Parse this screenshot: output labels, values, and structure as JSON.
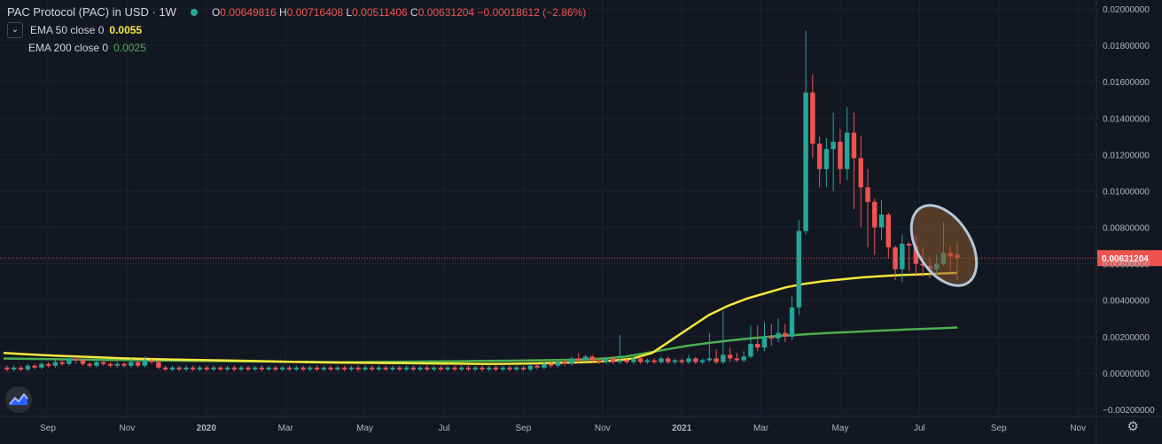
{
  "legend": {
    "title": "PAC Protocol (PAC) in USD · 1W",
    "open_label": "O",
    "open": "0.00649816",
    "high_label": "H",
    "high": "0.00716408",
    "low_label": "L",
    "low": "0.00511406",
    "close_label": "C",
    "close": "0.00631204",
    "change": "−0.00018612 (−2.86%)",
    "ema50_label": "EMA 50 close 0",
    "ema50_value": "0.0055",
    "ema200_label": "EMA 200 close 0",
    "ema200_value": "0.0025"
  },
  "colors": {
    "background": "#131722",
    "up": "#26a69a",
    "down": "#ef5350",
    "ema50": "#f7e83c",
    "ema200": "#4caf50",
    "grid": "#1e222d",
    "price_line": "#ef5350",
    "highlight_fill": "#8a5a2b",
    "highlight_stroke": "#b2c8dc"
  },
  "icons": {
    "logo": "tradingview-logo-icon",
    "settings": "gear-icon",
    "collapse": "chevron-down-icon"
  },
  "chart_data": {
    "type": "candlestick",
    "x_axis_ticks": [
      "Sep",
      "Nov",
      "2020",
      "Mar",
      "May",
      "Jul",
      "Sep",
      "Nov",
      "2021",
      "Mar",
      "May",
      "Jul",
      "Sep",
      "Nov"
    ],
    "y_axis_ticks": [
      "0.02000000",
      "0.01800000",
      "0.01600000",
      "0.01400000",
      "0.01200000",
      "0.01000000",
      "0.00800000",
      "0.00600000",
      "0.00400000",
      "0.00200000",
      "0.00000000",
      "−0.00200000"
    ],
    "ylim": [
      -0.002,
      0.02
    ],
    "grid": true,
    "last_price_label": "0.00631204",
    "last_price": 0.00631204,
    "candles": [
      {
        "o": 0.0003,
        "c": 0.0002,
        "h": 0.0004,
        "l": 0.0001
      },
      {
        "o": 0.0002,
        "c": 0.0003,
        "h": 0.0004,
        "l": 0.0001
      },
      {
        "o": 0.0003,
        "c": 0.0002,
        "h": 0.0004,
        "l": 0.0001
      },
      {
        "o": 0.0002,
        "c": 0.0004,
        "h": 0.0005,
        "l": 0.0001
      },
      {
        "o": 0.0004,
        "c": 0.0003,
        "h": 0.0005,
        "l": 0.0002
      },
      {
        "o": 0.0003,
        "c": 0.0005,
        "h": 0.0006,
        "l": 0.0002
      },
      {
        "o": 0.0005,
        "c": 0.0004,
        "h": 0.0006,
        "l": 0.0003
      },
      {
        "o": 0.0004,
        "c": 0.0006,
        "h": 0.0007,
        "l": 0.0003
      },
      {
        "o": 0.0006,
        "c": 0.0005,
        "h": 0.0007,
        "l": 0.0004
      },
      {
        "o": 0.0005,
        "c": 0.0008,
        "h": 0.0009,
        "l": 0.0004
      },
      {
        "o": 0.0008,
        "c": 0.0007,
        "h": 0.0009,
        "l": 0.0005
      },
      {
        "o": 0.0007,
        "c": 0.0005,
        "h": 0.0008,
        "l": 0.0004
      },
      {
        "o": 0.0005,
        "c": 0.0004,
        "h": 0.0006,
        "l": 0.0003
      },
      {
        "o": 0.0004,
        "c": 0.0006,
        "h": 0.0008,
        "l": 0.0003
      },
      {
        "o": 0.0006,
        "c": 0.0005,
        "h": 0.0007,
        "l": 0.0004
      },
      {
        "o": 0.0005,
        "c": 0.0004,
        "h": 0.0006,
        "l": 0.0003
      },
      {
        "o": 0.0004,
        "c": 0.0005,
        "h": 0.0006,
        "l": 0.0003
      },
      {
        "o": 0.0005,
        "c": 0.0004,
        "h": 0.0006,
        "l": 0.0003
      },
      {
        "o": 0.0004,
        "c": 0.0006,
        "h": 0.0008,
        "l": 0.0003
      },
      {
        "o": 0.0006,
        "c": 0.0004,
        "h": 0.0007,
        "l": 0.0003
      },
      {
        "o": 0.0004,
        "c": 0.0007,
        "h": 0.0009,
        "l": 0.0003
      },
      {
        "o": 0.0007,
        "c": 0.0006,
        "h": 0.0008,
        "l": 0.0005
      },
      {
        "o": 0.0006,
        "c": 0.0003,
        "h": 0.0007,
        "l": 0.0002
      },
      {
        "o": 0.0003,
        "c": 0.0002,
        "h": 0.0004,
        "l": 0.0001
      },
      {
        "o": 0.0002,
        "c": 0.0003,
        "h": 0.0004,
        "l": 0.0001
      },
      {
        "o": 0.0003,
        "c": 0.0002,
        "h": 0.0004,
        "l": 0.0001
      },
      {
        "o": 0.0002,
        "c": 0.0003,
        "h": 0.0004,
        "l": 0.0001
      },
      {
        "o": 0.0003,
        "c": 0.0002,
        "h": 0.0004,
        "l": 0.0001
      },
      {
        "o": 0.0002,
        "c": 0.0003,
        "h": 0.0004,
        "l": 0.0001
      },
      {
        "o": 0.0003,
        "c": 0.0002,
        "h": 0.0004,
        "l": 0.0001
      },
      {
        "o": 0.0002,
        "c": 0.0003,
        "h": 0.0004,
        "l": 0.0001
      },
      {
        "o": 0.0003,
        "c": 0.0002,
        "h": 0.0004,
        "l": 0.0001
      },
      {
        "o": 0.0002,
        "c": 0.0003,
        "h": 0.0004,
        "l": 0.0001
      },
      {
        "o": 0.0003,
        "c": 0.0002,
        "h": 0.0004,
        "l": 0.0001
      },
      {
        "o": 0.0002,
        "c": 0.0003,
        "h": 0.0004,
        "l": 0.0001
      },
      {
        "o": 0.0003,
        "c": 0.0002,
        "h": 0.0004,
        "l": 0.0001
      },
      {
        "o": 0.0002,
        "c": 0.0003,
        "h": 0.0004,
        "l": 0.0001
      },
      {
        "o": 0.0003,
        "c": 0.0002,
        "h": 0.0004,
        "l": 0.0001
      },
      {
        "o": 0.0002,
        "c": 0.0003,
        "h": 0.0004,
        "l": 0.0001
      },
      {
        "o": 0.0003,
        "c": 0.0002,
        "h": 0.0004,
        "l": 0.0001
      },
      {
        "o": 0.0002,
        "c": 0.0003,
        "h": 0.0004,
        "l": 0.0001
      },
      {
        "o": 0.0003,
        "c": 0.0002,
        "h": 0.0004,
        "l": 0.0001
      },
      {
        "o": 0.0002,
        "c": 0.0003,
        "h": 0.0004,
        "l": 0.0001
      },
      {
        "o": 0.0003,
        "c": 0.0002,
        "h": 0.0004,
        "l": 0.0001
      },
      {
        "o": 0.0002,
        "c": 0.0003,
        "h": 0.0004,
        "l": 0.0001
      },
      {
        "o": 0.0003,
        "c": 0.0002,
        "h": 0.0004,
        "l": 0.0001
      },
      {
        "o": 0.0002,
        "c": 0.0003,
        "h": 0.0004,
        "l": 0.0001
      },
      {
        "o": 0.0003,
        "c": 0.0002,
        "h": 0.0004,
        "l": 0.0001
      },
      {
        "o": 0.0002,
        "c": 0.0003,
        "h": 0.0004,
        "l": 0.0001
      },
      {
        "o": 0.0003,
        "c": 0.0002,
        "h": 0.0004,
        "l": 0.0001
      },
      {
        "o": 0.0002,
        "c": 0.0003,
        "h": 0.0004,
        "l": 0.0001
      },
      {
        "o": 0.0003,
        "c": 0.0002,
        "h": 0.0004,
        "l": 0.0001
      },
      {
        "o": 0.0002,
        "c": 0.0003,
        "h": 0.0004,
        "l": 0.0001
      },
      {
        "o": 0.0003,
        "c": 0.0002,
        "h": 0.0004,
        "l": 0.0001
      },
      {
        "o": 0.0002,
        "c": 0.0003,
        "h": 0.0004,
        "l": 0.0001
      },
      {
        "o": 0.0003,
        "c": 0.0002,
        "h": 0.0004,
        "l": 0.0001
      },
      {
        "o": 0.0002,
        "c": 0.0003,
        "h": 0.0004,
        "l": 0.0001
      },
      {
        "o": 0.0003,
        "c": 0.0002,
        "h": 0.0004,
        "l": 0.0001
      },
      {
        "o": 0.0002,
        "c": 0.0003,
        "h": 0.0004,
        "l": 0.0001
      },
      {
        "o": 0.0003,
        "c": 0.0002,
        "h": 0.0004,
        "l": 0.0001
      },
      {
        "o": 0.0002,
        "c": 0.0003,
        "h": 0.0004,
        "l": 0.0001
      },
      {
        "o": 0.0003,
        "c": 0.0002,
        "h": 0.0004,
        "l": 0.0001
      },
      {
        "o": 0.0002,
        "c": 0.0003,
        "h": 0.0004,
        "l": 0.0001
      },
      {
        "o": 0.0003,
        "c": 0.0002,
        "h": 0.0004,
        "l": 0.0001
      },
      {
        "o": 0.0002,
        "c": 0.0003,
        "h": 0.0004,
        "l": 0.0001
      },
      {
        "o": 0.0003,
        "c": 0.0002,
        "h": 0.0004,
        "l": 0.0001
      },
      {
        "o": 0.0002,
        "c": 0.0003,
        "h": 0.0004,
        "l": 0.0001
      },
      {
        "o": 0.0003,
        "c": 0.0002,
        "h": 0.0004,
        "l": 0.0001
      },
      {
        "o": 0.0002,
        "c": 0.0003,
        "h": 0.0004,
        "l": 0.0001
      },
      {
        "o": 0.0003,
        "c": 0.0002,
        "h": 0.0004,
        "l": 0.0001
      },
      {
        "o": 0.0002,
        "c": 0.0003,
        "h": 0.0004,
        "l": 0.0001
      },
      {
        "o": 0.0003,
        "c": 0.0002,
        "h": 0.0004,
        "l": 0.0001
      },
      {
        "o": 0.0002,
        "c": 0.0003,
        "h": 0.0004,
        "l": 0.0001
      },
      {
        "o": 0.0003,
        "c": 0.0002,
        "h": 0.0004,
        "l": 0.0001
      },
      {
        "o": 0.0002,
        "c": 0.0003,
        "h": 0.0004,
        "l": 0.0001
      },
      {
        "o": 0.0003,
        "c": 0.0002,
        "h": 0.0004,
        "l": 0.0001
      },
      {
        "o": 0.0002,
        "c": 0.0004,
        "h": 0.0005,
        "l": 0.0001
      },
      {
        "o": 0.0004,
        "c": 0.0003,
        "h": 0.0005,
        "l": 0.0002
      },
      {
        "o": 0.0003,
        "c": 0.0005,
        "h": 0.0006,
        "l": 0.0002
      },
      {
        "o": 0.0005,
        "c": 0.0004,
        "h": 0.0006,
        "l": 0.0003
      },
      {
        "o": 0.0004,
        "c": 0.0006,
        "h": 0.0007,
        "l": 0.0003
      },
      {
        "o": 0.0006,
        "c": 0.0005,
        "h": 0.0007,
        "l": 0.0004
      },
      {
        "o": 0.0005,
        "c": 0.0008,
        "h": 0.0009,
        "l": 0.0004
      },
      {
        "o": 0.0008,
        "c": 0.0007,
        "h": 0.0011,
        "l": 0.0005
      },
      {
        "o": 0.0007,
        "c": 0.0009,
        "h": 0.001,
        "l": 0.0006
      },
      {
        "o": 0.0009,
        "c": 0.0007,
        "h": 0.001,
        "l": 0.0006
      },
      {
        "o": 0.0007,
        "c": 0.0006,
        "h": 0.0008,
        "l": 0.0005
      },
      {
        "o": 0.0006,
        "c": 0.0008,
        "h": 0.0009,
        "l": 0.0005
      },
      {
        "o": 0.0008,
        "c": 0.0006,
        "h": 0.0009,
        "l": 0.0005
      },
      {
        "o": 0.0006,
        "c": 0.0007,
        "h": 0.0021,
        "l": 0.0005
      },
      {
        "o": 0.0007,
        "c": 0.0006,
        "h": 0.0008,
        "l": 0.0005
      },
      {
        "o": 0.0006,
        "c": 0.0008,
        "h": 0.0009,
        "l": 0.0005
      },
      {
        "o": 0.0008,
        "c": 0.0006,
        "h": 0.0009,
        "l": 0.0005
      },
      {
        "o": 0.0006,
        "c": 0.0007,
        "h": 0.0008,
        "l": 0.0005
      },
      {
        "o": 0.0007,
        "c": 0.0006,
        "h": 0.0008,
        "l": 0.0005
      },
      {
        "o": 0.0006,
        "c": 0.0008,
        "h": 0.0009,
        "l": 0.0005
      },
      {
        "o": 0.0008,
        "c": 0.0006,
        "h": 0.0009,
        "l": 0.0005
      },
      {
        "o": 0.0006,
        "c": 0.0007,
        "h": 0.0008,
        "l": 0.0005
      },
      {
        "o": 0.0007,
        "c": 0.0006,
        "h": 0.0008,
        "l": 0.0005
      },
      {
        "o": 0.0006,
        "c": 0.0008,
        "h": 0.001,
        "l": 0.0005
      },
      {
        "o": 0.0008,
        "c": 0.0006,
        "h": 0.0009,
        "l": 0.0005
      },
      {
        "o": 0.0006,
        "c": 0.0007,
        "h": 0.0008,
        "l": 0.0005
      },
      {
        "o": 0.0007,
        "c": 0.0008,
        "h": 0.0022,
        "l": 0.0006
      },
      {
        "o": 0.0008,
        "c": 0.0006,
        "h": 0.0013,
        "l": 0.0005
      },
      {
        "o": 0.0006,
        "c": 0.001,
        "h": 0.0034,
        "l": 0.0005
      },
      {
        "o": 0.001,
        "c": 0.0008,
        "h": 0.0014,
        "l": 0.0006
      },
      {
        "o": 0.0008,
        "c": 0.0007,
        "h": 0.0011,
        "l": 0.0006
      },
      {
        "o": 0.0007,
        "c": 0.0009,
        "h": 0.0012,
        "l": 0.0006
      },
      {
        "o": 0.0009,
        "c": 0.0016,
        "h": 0.0026,
        "l": 0.0008
      },
      {
        "o": 0.0016,
        "c": 0.0014,
        "h": 0.0026,
        "l": 0.0012
      },
      {
        "o": 0.0014,
        "c": 0.002,
        "h": 0.0028,
        "l": 0.0012
      },
      {
        "o": 0.002,
        "c": 0.0019,
        "h": 0.0027,
        "l": 0.0015
      },
      {
        "o": 0.0019,
        "c": 0.0022,
        "h": 0.003,
        "l": 0.0017
      },
      {
        "o": 0.0022,
        "c": 0.002,
        "h": 0.0027,
        "l": 0.0017
      },
      {
        "o": 0.002,
        "c": 0.0036,
        "h": 0.0042,
        "l": 0.0018
      },
      {
        "o": 0.0036,
        "c": 0.0078,
        "h": 0.0084,
        "l": 0.0032
      },
      {
        "o": 0.0078,
        "c": 0.0154,
        "h": 0.0188,
        "l": 0.0076
      },
      {
        "o": 0.0154,
        "c": 0.0126,
        "h": 0.0164,
        "l": 0.0118
      },
      {
        "o": 0.0126,
        "c": 0.0112,
        "h": 0.013,
        "l": 0.0102
      },
      {
        "o": 0.0112,
        "c": 0.0123,
        "h": 0.0129,
        "l": 0.0102
      },
      {
        "o": 0.0123,
        "c": 0.0127,
        "h": 0.0143,
        "l": 0.01
      },
      {
        "o": 0.0127,
        "c": 0.0112,
        "h": 0.0134,
        "l": 0.0104
      },
      {
        "o": 0.0112,
        "c": 0.0132,
        "h": 0.0146,
        "l": 0.0106
      },
      {
        "o": 0.0132,
        "c": 0.0118,
        "h": 0.0143,
        "l": 0.009
      },
      {
        "o": 0.0118,
        "c": 0.0102,
        "h": 0.013,
        "l": 0.008
      },
      {
        "o": 0.0102,
        "c": 0.0094,
        "h": 0.0112,
        "l": 0.0069
      },
      {
        "o": 0.0094,
        "c": 0.008,
        "h": 0.0096,
        "l": 0.0065
      },
      {
        "o": 0.008,
        "c": 0.0087,
        "h": 0.0095,
        "l": 0.0073
      },
      {
        "o": 0.0087,
        "c": 0.0069,
        "h": 0.0088,
        "l": 0.0063
      },
      {
        "o": 0.0069,
        "c": 0.0057,
        "h": 0.007,
        "l": 0.0051
      },
      {
        "o": 0.0057,
        "c": 0.0071,
        "h": 0.0076,
        "l": 0.005
      },
      {
        "o": 0.0071,
        "c": 0.007,
        "h": 0.0072,
        "l": 0.0056
      },
      {
        "o": 0.007,
        "c": 0.006,
        "h": 0.0076,
        "l": 0.0053
      },
      {
        "o": 0.006,
        "c": 0.0059,
        "h": 0.0069,
        "l": 0.0053
      },
      {
        "o": 0.0059,
        "c": 0.0057,
        "h": 0.0063,
        "l": 0.0052
      },
      {
        "o": 0.0057,
        "c": 0.006,
        "h": 0.0065,
        "l": 0.0054
      },
      {
        "o": 0.006,
        "c": 0.0066,
        "h": 0.0083,
        "l": 0.0059
      },
      {
        "o": 0.0066,
        "c": 0.0064,
        "h": 0.007,
        "l": 0.0056
      },
      {
        "o": 0.0065,
        "c": 0.00631,
        "h": 0.00716,
        "l": 0.00511
      }
    ],
    "ema50": [
      0.0011,
      0.00104,
      0.00099,
      0.00094,
      0.0009,
      0.00086,
      0.00082,
      0.00079,
      0.00076,
      0.00074,
      0.00072,
      0.0007,
      0.00068,
      0.00066,
      0.00064,
      0.00062,
      0.0006,
      0.00058,
      0.00057,
      0.00056,
      0.00055,
      0.00054,
      0.00053,
      0.00052,
      0.00051,
      0.0005,
      0.0005,
      0.00051,
      0.00053,
      0.00056,
      0.00058,
      0.00062,
      0.00068,
      0.0008,
      0.0011,
      0.0018,
      0.0025,
      0.0032,
      0.0037,
      0.0041,
      0.0044,
      0.0047,
      0.0049,
      0.00505,
      0.00515,
      0.00525,
      0.00532,
      0.00538,
      0.00542,
      0.00546,
      0.0055
    ],
    "ema200": [
      0.0008,
      0.00078,
      0.00077,
      0.00075,
      0.00074,
      0.00072,
      0.00071,
      0.00069,
      0.00068,
      0.00067,
      0.00066,
      0.00065,
      0.00064,
      0.00063,
      0.00062,
      0.00061,
      0.0006,
      0.0006,
      0.00061,
      0.00062,
      0.00063,
      0.00064,
      0.00065,
      0.00066,
      0.00067,
      0.00068,
      0.0007,
      0.00072,
      0.00075,
      0.0008,
      0.0009,
      0.0011,
      0.0013,
      0.0015,
      0.00165,
      0.00178,
      0.0019,
      0.002,
      0.00208,
      0.00215,
      0.00221,
      0.00226,
      0.00231,
      0.00236,
      0.00241,
      0.00245,
      0.0025
    ]
  }
}
